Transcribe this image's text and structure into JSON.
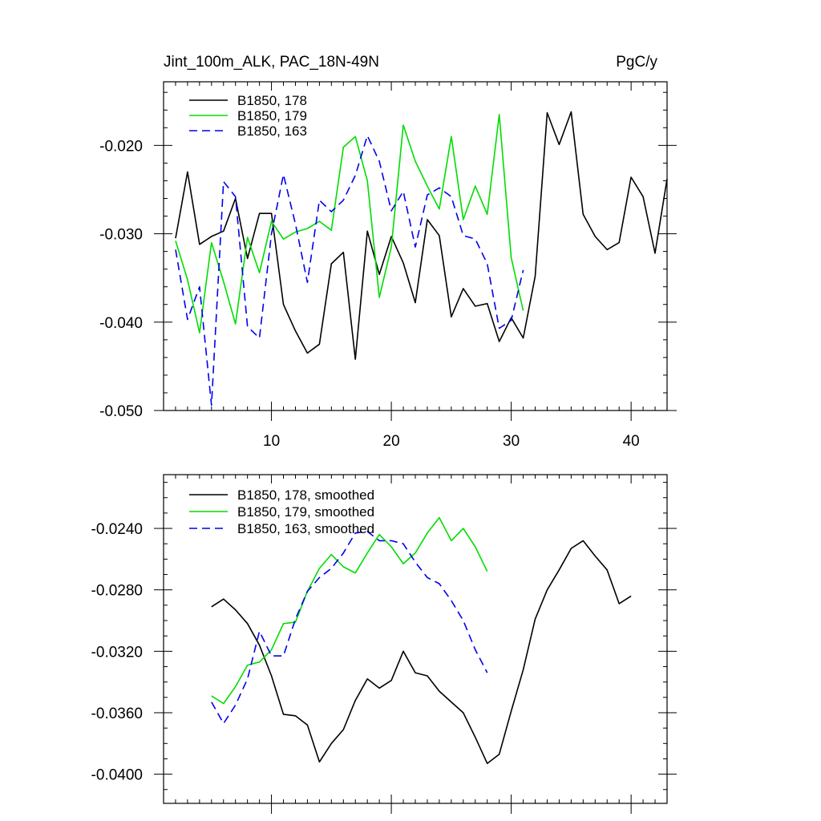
{
  "colors": {
    "s178": "#000000",
    "s179": "#00dd00",
    "s163": "#0000ee"
  },
  "chart_data": [
    {
      "type": "line",
      "title_left": "Jint_100m_ALK, PAC_18N-49N",
      "title_right": "PgC/y",
      "xlim": [
        1,
        43
      ],
      "ylim": [
        -0.05,
        -0.0128
      ],
      "x_ticks": [
        10,
        20,
        30,
        40
      ],
      "x_tick_labels": [
        "10",
        "20",
        "30",
        "40"
      ],
      "y_ticks": [
        -0.05,
        -0.04,
        -0.03,
        -0.02
      ],
      "y_tick_labels": [
        "-0.050",
        "-0.040",
        "-0.030",
        "-0.020"
      ],
      "x_minor_step": 1,
      "y_minor_step": 0.002,
      "series": [
        {
          "name": "B1850, 178",
          "style": "solid",
          "color_key": "s178",
          "x": [
            2,
            3,
            4,
            5,
            6,
            7,
            8,
            9,
            10,
            11,
            12,
            13,
            14,
            15,
            16,
            17,
            18,
            19,
            20,
            21,
            22,
            23,
            24,
            25,
            26,
            27,
            28,
            29,
            30,
            31,
            32,
            33,
            34,
            35,
            36,
            37,
            38,
            39,
            40,
            41,
            42,
            43
          ],
          "values": [
            -0.0305,
            -0.023,
            -0.0312,
            -0.0303,
            -0.0297,
            -0.026,
            -0.0328,
            -0.0277,
            -0.0277,
            -0.038,
            -0.041,
            -0.0435,
            -0.0425,
            -0.0334,
            -0.0321,
            -0.0442,
            -0.0297,
            -0.0346,
            -0.0303,
            -0.0333,
            -0.0378,
            -0.0284,
            -0.0302,
            -0.0394,
            -0.0362,
            -0.0382,
            -0.0379,
            -0.0422,
            -0.0395,
            -0.0418,
            -0.0348,
            -0.0163,
            -0.0199,
            -0.0162,
            -0.0278,
            -0.0303,
            -0.0318,
            -0.031,
            -0.0236,
            -0.0258,
            -0.0322,
            -0.0238
          ]
        },
        {
          "name": "B1850, 179",
          "style": "solid",
          "color_key": "s179",
          "x": [
            2,
            3,
            4,
            5,
            6,
            7,
            8,
            9,
            10,
            11,
            12,
            13,
            14,
            15,
            16,
            17,
            18,
            19,
            20,
            21,
            22,
            23,
            24,
            25,
            26,
            27,
            28,
            29,
            30,
            31
          ],
          "values": [
            -0.0308,
            -0.0352,
            -0.0412,
            -0.031,
            -0.0354,
            -0.0402,
            -0.0304,
            -0.0344,
            -0.0286,
            -0.0306,
            -0.0298,
            -0.0294,
            -0.0286,
            -0.0296,
            -0.0202,
            -0.019,
            -0.024,
            -0.0372,
            -0.0315,
            -0.0177,
            -0.0218,
            -0.0246,
            -0.0272,
            -0.019,
            -0.0284,
            -0.0246,
            -0.0278,
            -0.0165,
            -0.0327,
            -0.0387
          ]
        },
        {
          "name": "B1850, 163",
          "style": "dashed",
          "color_key": "s163",
          "x": [
            2,
            3,
            4,
            5,
            6,
            7,
            8,
            9,
            10,
            11,
            12,
            13,
            14,
            15,
            16,
            17,
            18,
            19,
            20,
            21,
            22,
            23,
            24,
            25,
            26,
            27,
            28,
            29,
            30,
            31
          ],
          "values": [
            -0.0318,
            -0.0397,
            -0.036,
            -0.0494,
            -0.0241,
            -0.0258,
            -0.0405,
            -0.0418,
            -0.03,
            -0.0233,
            -0.0289,
            -0.0355,
            -0.0262,
            -0.0275,
            -0.0262,
            -0.0234,
            -0.0189,
            -0.0218,
            -0.0274,
            -0.0252,
            -0.0315,
            -0.0256,
            -0.0248,
            -0.0258,
            -0.0302,
            -0.0306,
            -0.0334,
            -0.0407,
            -0.0398,
            -0.0341
          ]
        }
      ]
    },
    {
      "type": "line",
      "xlim": [
        1,
        43
      ],
      "ylim": [
        -0.0419,
        -0.0205
      ],
      "x_ticks": [
        10,
        20,
        30,
        40
      ],
      "y_ticks": [
        -0.04,
        -0.036,
        -0.032,
        -0.028,
        -0.024
      ],
      "y_tick_labels": [
        "-0.0400",
        "-0.0360",
        "-0.0320",
        "-0.0280",
        "-0.0240"
      ],
      "x_minor_step": 1,
      "y_minor_step": 0.001,
      "series": [
        {
          "name": "B1850, 178, smoothed",
          "style": "solid",
          "color_key": "s178",
          "x": [
            5,
            6,
            7,
            8,
            9,
            10,
            11,
            12,
            13,
            14,
            15,
            16,
            17,
            18,
            19,
            20,
            21,
            22,
            23,
            24,
            25,
            26,
            27,
            28,
            29,
            30,
            31,
            32,
            33,
            34,
            35,
            36,
            37,
            38,
            39,
            40
          ],
          "values": [
            -0.0291,
            -0.0286,
            -0.0293,
            -0.0302,
            -0.0316,
            -0.0336,
            -0.0361,
            -0.0362,
            -0.0368,
            -0.0392,
            -0.038,
            -0.0371,
            -0.0352,
            -0.0338,
            -0.0344,
            -0.0339,
            -0.032,
            -0.0334,
            -0.0336,
            -0.0346,
            -0.0353,
            -0.036,
            -0.0376,
            -0.0393,
            -0.0387,
            -0.0359,
            -0.0332,
            -0.0299,
            -0.028,
            -0.0267,
            -0.0253,
            -0.0248,
            -0.0258,
            -0.0267,
            -0.0289,
            -0.0284
          ]
        },
        {
          "name": "B1850, 179, smoothed",
          "style": "solid",
          "color_key": "s179",
          "x": [
            5,
            6,
            7,
            8,
            9,
            10,
            11,
            12,
            13,
            14,
            15,
            16,
            17,
            18,
            19,
            20,
            21,
            22,
            23,
            24,
            25,
            26,
            27,
            28
          ],
          "values": [
            -0.0349,
            -0.0354,
            -0.0343,
            -0.0329,
            -0.0327,
            -0.0319,
            -0.0302,
            -0.0301,
            -0.0281,
            -0.0266,
            -0.0257,
            -0.0265,
            -0.0269,
            -0.0256,
            -0.0244,
            -0.0252,
            -0.0263,
            -0.0256,
            -0.0243,
            -0.0233,
            -0.0248,
            -0.024,
            -0.0252,
            -0.0268
          ]
        },
        {
          "name": "B1850, 163, smoothed",
          "style": "dashed",
          "color_key": "s163",
          "x": [
            5,
            6,
            7,
            8,
            9,
            10,
            11,
            12,
            13,
            14,
            15,
            16,
            17,
            18,
            19,
            20,
            21,
            22,
            23,
            24,
            25,
            26,
            27,
            28
          ],
          "values": [
            -0.0353,
            -0.0367,
            -0.0355,
            -0.0338,
            -0.0307,
            -0.0323,
            -0.0323,
            -0.0299,
            -0.0281,
            -0.0272,
            -0.0266,
            -0.0256,
            -0.0243,
            -0.0242,
            -0.0248,
            -0.0248,
            -0.025,
            -0.0262,
            -0.0272,
            -0.0276,
            -0.0287,
            -0.03,
            -0.0319,
            -0.0334
          ]
        }
      ]
    }
  ]
}
